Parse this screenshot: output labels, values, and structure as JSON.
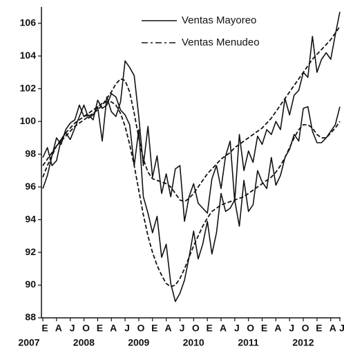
{
  "chart_data": {
    "type": "line",
    "categories": [
      "E",
      null,
      null,
      "A",
      null,
      null,
      "J",
      null,
      null,
      "O",
      null,
      null,
      "E",
      null,
      null,
      "A",
      null,
      null,
      "J",
      null,
      null,
      "O",
      null,
      null,
      "E",
      null,
      null,
      "A",
      null,
      null,
      "J",
      null,
      null,
      "O",
      null,
      null,
      "E",
      null,
      null,
      "A",
      null,
      null,
      "J",
      null,
      null,
      "O",
      null,
      null,
      "E",
      null,
      null,
      "A",
      null,
      null,
      "J",
      null,
      null,
      "O",
      null,
      null,
      "E",
      null,
      null,
      "A",
      null,
      "J"
    ],
    "years": [
      "2007",
      "2008",
      "2009",
      "2010",
      "2011",
      "2012"
    ],
    "series": [
      {
        "name": "Ventas Mayoreo",
        "color": "#111111",
        "dash": "none",
        "values": [
          97.8,
          98.4,
          97.3,
          97.6,
          98.9,
          99.3,
          98.9,
          99.6,
          100.3,
          101.0,
          100.2,
          100.4,
          100.9,
          98.8,
          101.5,
          100.6,
          100.3,
          101.2,
          103.7,
          103.3,
          102.8,
          100.3,
          97.3,
          99.7,
          96.6,
          97.9,
          95.6,
          96.8,
          95.4,
          97.1,
          97.3,
          93.9,
          95.4,
          96.2,
          95.0,
          94.7,
          94.4,
          96.5,
          97.3,
          95.9,
          97.9,
          98.8,
          95.1,
          99.2,
          97.0,
          98.2,
          97.5,
          99.1,
          98.6,
          99.5,
          99.2,
          100.0,
          99.5,
          101.4,
          100.4,
          101.6,
          101.9,
          103.0,
          102.7,
          105.2,
          103.0,
          103.8,
          104.2,
          103.8,
          105.3,
          106.7
        ],
        "trend": [
          97.3,
          97.7,
          98.1,
          98.5,
          98.8,
          99.1,
          99.4,
          99.7,
          99.9,
          100.1,
          100.3,
          100.5,
          100.7,
          101.0,
          101.4,
          101.8,
          102.3,
          102.6,
          102.5,
          101.8,
          100.5,
          99.0,
          97.7,
          96.9,
          96.5,
          96.4,
          96.3,
          96.2,
          96.0,
          95.6,
          95.2,
          95.1,
          95.3,
          95.6,
          96.0,
          96.4,
          96.8,
          97.1,
          97.4,
          97.7,
          97.9,
          98.1,
          98.4,
          98.6,
          98.8,
          99.0,
          99.2,
          99.4,
          99.6,
          99.9,
          100.2,
          100.6,
          101.0,
          101.4,
          101.8,
          102.2,
          102.6,
          103.0,
          103.4,
          103.8,
          104.1,
          104.4,
          104.7,
          105.0,
          105.4,
          105.8
        ]
      },
      {
        "name": "Ventas Menudeo",
        "color": "#111111",
        "dash": "9 4 3 4",
        "values": [
          95.9,
          96.7,
          97.9,
          99.0,
          98.6,
          99.5,
          99.9,
          100.1,
          101.0,
          100.3,
          100.4,
          100.1,
          101.3,
          100.8,
          101.0,
          101.7,
          101.5,
          100.7,
          100.4,
          99.8,
          97.3,
          99.5,
          95.4,
          94.4,
          93.2,
          94.2,
          91.7,
          92.5,
          90.1,
          89.0,
          89.5,
          90.3,
          91.7,
          93.3,
          91.6,
          92.5,
          93.9,
          91.9,
          93.2,
          95.6,
          94.5,
          94.7,
          95.2,
          93.6,
          96.4,
          94.5,
          94.9,
          97.0,
          96.3,
          95.9,
          97.8,
          96.1,
          96.7,
          97.8,
          98.3,
          99.2,
          98.8,
          100.8,
          100.9,
          99.4,
          98.7,
          98.7,
          99.0,
          99.4,
          99.8,
          100.9
        ],
        "trend": [
          96.6,
          97.3,
          97.9,
          98.5,
          98.9,
          99.3,
          99.6,
          99.9,
          100.1,
          100.3,
          100.5,
          100.7,
          100.9,
          101.1,
          101.2,
          101.2,
          101.0,
          100.5,
          99.7,
          98.6,
          97.3,
          95.8,
          94.3,
          93.0,
          92.0,
          91.2,
          90.6,
          90.1,
          89.9,
          90.0,
          90.4,
          91.0,
          91.7,
          92.4,
          93.0,
          93.6,
          94.1,
          94.5,
          94.7,
          94.9,
          95.0,
          95.1,
          95.2,
          95.3,
          95.4,
          95.6,
          95.8,
          96.0,
          96.2,
          96.4,
          96.6,
          96.9,
          97.3,
          97.8,
          98.4,
          99.0,
          99.5,
          99.8,
          99.8,
          99.6,
          99.2,
          99.0,
          99.0,
          99.3,
          99.6,
          100.0
        ]
      }
    ],
    "ylim": [
      88,
      107
    ],
    "yticks": [
      88,
      90,
      92,
      94,
      96,
      98,
      100,
      102,
      104,
      106
    ],
    "grid": false,
    "legend": "top-right"
  }
}
